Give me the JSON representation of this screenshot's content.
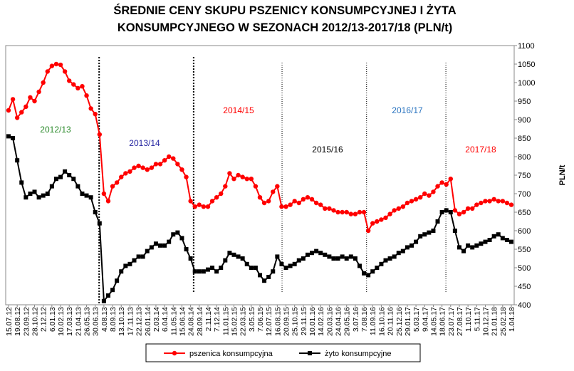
{
  "chart_data": {
    "type": "line",
    "title": "ŚREDNIE CENY SKUPU PSZENICY KONSUMPCYJNEJ I ŻYTA",
    "subtitle": "KONSUMPCYJNEGO W SEZONACH 2012/13-2017/18 (PLN/t)",
    "y_label": "PLN/t",
    "categories": [
      "15.07.12",
      null,
      "19.08.12",
      null,
      "23.09.12",
      null,
      "28.10.12",
      null,
      "2.12.12",
      null,
      "6.01.13",
      null,
      "10.02.13",
      null,
      "17.03.13",
      null,
      "21.04.13",
      null,
      "26.05.13",
      null,
      "30.06.13",
      null,
      "4.08.13",
      null,
      "8.09.13",
      null,
      "13.10.13",
      null,
      "17.11.13",
      null,
      "22.12.13",
      null,
      "26.01.14",
      null,
      "2.03.14",
      null,
      "6.04.14",
      null,
      "11.05.14",
      null,
      "15.06.14",
      null,
      "24.08.14",
      null,
      "28.09.14",
      null,
      "2.11.14",
      null,
      "7.12.14",
      null,
      "11.01.15",
      null,
      "15.02.15",
      null,
      "22.03.15",
      null,
      "3.05.15",
      null,
      "7.06.15",
      null,
      "12.07.15",
      null,
      "16.08.15",
      null,
      "20.09.15",
      null,
      "25.10.15",
      null,
      "29.11.15",
      null,
      "10.01.16",
      null,
      "14.02.16",
      null,
      "20.03.16",
      null,
      "24.04.16",
      null,
      "29.05.16",
      null,
      "3.07.16",
      null,
      "7.08.16",
      null,
      "11.09.16",
      null,
      "16.10.16",
      null,
      "20.11.16",
      null,
      "25.12.16",
      null,
      "29.01.17",
      null,
      "5.03.17",
      null,
      "9.04.17",
      null,
      "14.05.17",
      null,
      "18.06.17",
      null,
      "23.07.17",
      null,
      "27.08.17",
      null,
      "1.10.17",
      null,
      "5.11.17",
      null,
      "10.12.17",
      null,
      "21.01.18",
      null,
      "25.02.18",
      null,
      "1.04.18"
    ],
    "series": [
      {
        "name": "pszenica konsumpcyjna",
        "color": "#ff0000",
        "marker": "circle",
        "values": [
          925,
          955,
          905,
          920,
          935,
          960,
          950,
          975,
          1000,
          1030,
          1045,
          1050,
          1048,
          1030,
          1005,
          995,
          985,
          990,
          965,
          930,
          915,
          860,
          700,
          680,
          720,
          730,
          745,
          755,
          760,
          770,
          775,
          770,
          765,
          770,
          780,
          780,
          790,
          800,
          795,
          780,
          765,
          745,
          680,
          665,
          670,
          665,
          665,
          680,
          690,
          700,
          720,
          755,
          740,
          750,
          745,
          740,
          740,
          720,
          690,
          675,
          680,
          705,
          720,
          665,
          665,
          670,
          680,
          675,
          685,
          690,
          685,
          675,
          670,
          660,
          660,
          655,
          650,
          650,
          650,
          645,
          645,
          650,
          650,
          600,
          620,
          625,
          630,
          635,
          645,
          655,
          660,
          665,
          675,
          680,
          685,
          690,
          700,
          695,
          705,
          720,
          730,
          725,
          740,
          655,
          645,
          650,
          660,
          660,
          670,
          675,
          680,
          680,
          685,
          680,
          680,
          675,
          670
        ]
      },
      {
        "name": "żyto konsumpcyjne",
        "color": "#000000",
        "marker": "square",
        "values": [
          855,
          850,
          790,
          730,
          690,
          700,
          705,
          690,
          695,
          700,
          720,
          740,
          745,
          760,
          750,
          740,
          720,
          700,
          695,
          690,
          650,
          620,
          410,
          425,
          440,
          465,
          490,
          505,
          510,
          520,
          530,
          530,
          545,
          555,
          565,
          560,
          560,
          570,
          590,
          595,
          580,
          550,
          525,
          490,
          490,
          490,
          495,
          500,
          490,
          500,
          520,
          540,
          535,
          530,
          525,
          510,
          500,
          500,
          480,
          465,
          475,
          490,
          530,
          510,
          500,
          505,
          510,
          520,
          525,
          535,
          540,
          545,
          540,
          535,
          530,
          525,
          525,
          530,
          525,
          530,
          525,
          505,
          485,
          480,
          490,
          500,
          510,
          520,
          525,
          530,
          540,
          545,
          555,
          560,
          570,
          585,
          590,
          595,
          600,
          625,
          650,
          655,
          650,
          600,
          555,
          545,
          560,
          555,
          560,
          565,
          570,
          575,
          585,
          590,
          580,
          575,
          570
        ]
      }
    ],
    "annotations": [
      {
        "text": "2012/13",
        "color": "#2a8a2a"
      },
      {
        "text": "2013/14",
        "color": "#2323a0"
      },
      {
        "text": "2014/15",
        "color": "#ff0000"
      },
      {
        "text": "2015/16",
        "color": "#000000"
      },
      {
        "text": "2016/17",
        "color": "#2a74c0"
      },
      {
        "text": "2017/18",
        "color": "#ff0000"
      }
    ],
    "ylim": [
      400,
      1100
    ],
    "yticks": [
      400,
      450,
      500,
      550,
      600,
      650,
      700,
      750,
      800,
      850,
      900,
      950,
      1000,
      1050,
      1100
    ],
    "y_axis_side": "right",
    "grid": false,
    "legend": "bottom"
  }
}
